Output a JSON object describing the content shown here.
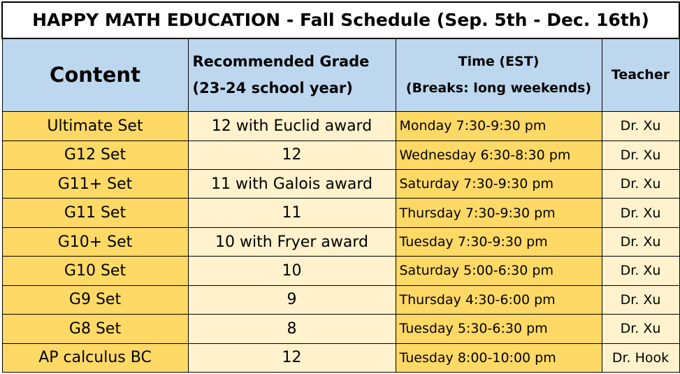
{
  "title": "HAPPY MATH EDUCATION - Fall Schedule (Sep. 5th - Dec. 16th)",
  "headers": {
    "content": "Content",
    "grade_line1": "Recommended Grade",
    "grade_line2": "(23-24 school year)",
    "time_line1": "Time (EST)",
    "time_line2": "(Breaks: long weekends)",
    "teacher": "Teacher"
  },
  "colors": {
    "header_bg": "#bdd7ee",
    "content_bg": "#ffd966",
    "grade_bg": "#fff2cc"
  },
  "rows": [
    {
      "content": "Ultimate Set",
      "grade": "12 with Euclid award",
      "time": "Monday 7:30-9:30 pm",
      "teacher": "Dr. Xu"
    },
    {
      "content": "G12 Set",
      "grade": "12",
      "time": "Wednesday 6:30-8:30 pm",
      "teacher": "Dr. Xu"
    },
    {
      "content": "G11+ Set",
      "grade": "11 with Galois award",
      "time": "Saturday 7:30-9:30 pm",
      "teacher": "Dr. Xu"
    },
    {
      "content": "G11 Set",
      "grade": "11",
      "time": "Thursday 7:30-9:30 pm",
      "teacher": "Dr. Xu"
    },
    {
      "content": "G10+ Set",
      "grade": "10 with Fryer award",
      "time": "Tuesday 7:30-9:30 pm",
      "teacher": "Dr. Xu"
    },
    {
      "content": "G10 Set",
      "grade": "10",
      "time": "Saturday 5:00-6:30 pm",
      "teacher": "Dr. Xu"
    },
    {
      "content": "G9 Set",
      "grade": "9",
      "time": "Thursday 4:30-6:00 pm",
      "teacher": "Dr. Xu"
    },
    {
      "content": "G8 Set",
      "grade": "8",
      "time": "Tuesday 5:30-6:30 pm",
      "teacher": "Dr. Xu"
    },
    {
      "content": "AP calculus BC",
      "grade": "12",
      "time": "Tuesday 8:00-10:00 pm",
      "teacher": "Dr. Hook"
    }
  ]
}
